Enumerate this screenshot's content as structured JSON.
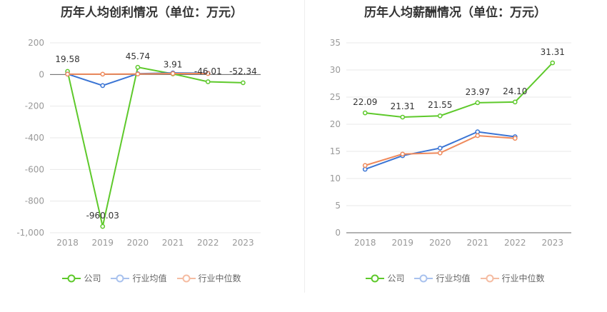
{
  "charts": [
    {
      "title": "历年人均创利情况（单位：万元）",
      "legend": [
        "公司",
        "行业均值",
        "行业中位数"
      ]
    },
    {
      "title": "历年人均薪酬情况（单位：万元）",
      "legend": [
        "公司",
        "行业均值",
        "行业中位数"
      ]
    }
  ],
  "colors": {
    "company": "#5ec92b",
    "industry_avg": "#3a74d4",
    "industry_median": "#ef8a5c"
  },
  "chart_data": [
    {
      "type": "line",
      "title": "历年人均创利情况（单位：万元）",
      "categories": [
        "2018",
        "2019",
        "2020",
        "2021",
        "2022",
        "2023"
      ],
      "ylim": [
        -1000,
        200
      ],
      "yticks": [
        200,
        0,
        -200,
        -400,
        -600,
        -800,
        -1000
      ],
      "ytick_labels": [
        "200",
        "0",
        "-200",
        "-400",
        "-600",
        "-800",
        "-1,000"
      ],
      "grid": true,
      "legend_position": "bottom",
      "series": [
        {
          "name": "公司",
          "values": [
            19.58,
            -960.03,
            45.74,
            3.91,
            -46.01,
            -52.34
          ],
          "labels": [
            "19.58",
            "-960.03",
            "45.74",
            "3.91",
            "-46.01",
            "-52.34"
          ]
        },
        {
          "name": "行业均值",
          "values": [
            3,
            -70,
            5,
            10,
            8,
            null
          ]
        },
        {
          "name": "行业中位数",
          "values": [
            2,
            2,
            3,
            6,
            6,
            null
          ]
        }
      ]
    },
    {
      "type": "line",
      "title": "历年人均薪酬情况（单位：万元）",
      "categories": [
        "2018",
        "2019",
        "2020",
        "2021",
        "2022",
        "2023"
      ],
      "ylim": [
        0,
        35
      ],
      "yticks": [
        0,
        5,
        10,
        15,
        20,
        25,
        30,
        35
      ],
      "ytick_labels": [
        "0",
        "5",
        "10",
        "15",
        "20",
        "25",
        "30",
        "35"
      ],
      "grid": true,
      "legend_position": "bottom",
      "series": [
        {
          "name": "公司",
          "values": [
            22.09,
            21.31,
            21.55,
            23.97,
            24.1,
            31.31
          ],
          "labels": [
            "22.09",
            "21.31",
            "21.55",
            "23.97",
            "24.10",
            "31.31"
          ]
        },
        {
          "name": "行业均值",
          "values": [
            11.7,
            14.2,
            15.6,
            18.6,
            17.7,
            null
          ]
        },
        {
          "name": "行业中位数",
          "values": [
            12.4,
            14.5,
            14.7,
            17.9,
            17.4,
            null
          ]
        }
      ]
    }
  ]
}
